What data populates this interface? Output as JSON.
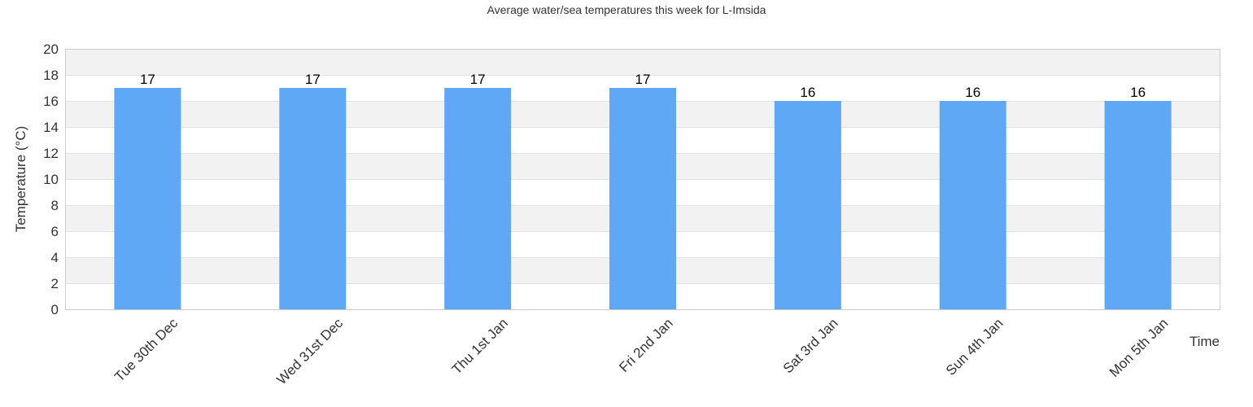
{
  "chart_data": {
    "type": "bar",
    "title": "Average water/sea temperatures this week for L-Imsida",
    "xlabel": "Time",
    "ylabel": "Temperature (°C)",
    "categories": [
      "Tue 30th Dec",
      "Wed 31st Dec",
      "Thu 1st Jan",
      "Fri 2nd Jan",
      "Sat 3rd Jan",
      "Sun 4th Jan",
      "Mon 5th Jan"
    ],
    "series": [
      {
        "values": [
          17,
          17,
          17,
          17,
          16,
          16,
          16
        ]
      }
    ],
    "ylim": [
      0,
      20
    ],
    "yticks": [
      0,
      2,
      4,
      6,
      8,
      10,
      12,
      14,
      16,
      18,
      20
    ],
    "data_labels": true,
    "grid": true,
    "legend": "none",
    "colors": {
      "bar": "#5fa8f5",
      "band": "#f2f2f2",
      "gridline": "#e2e2e2",
      "axis": "#cccccc"
    }
  }
}
